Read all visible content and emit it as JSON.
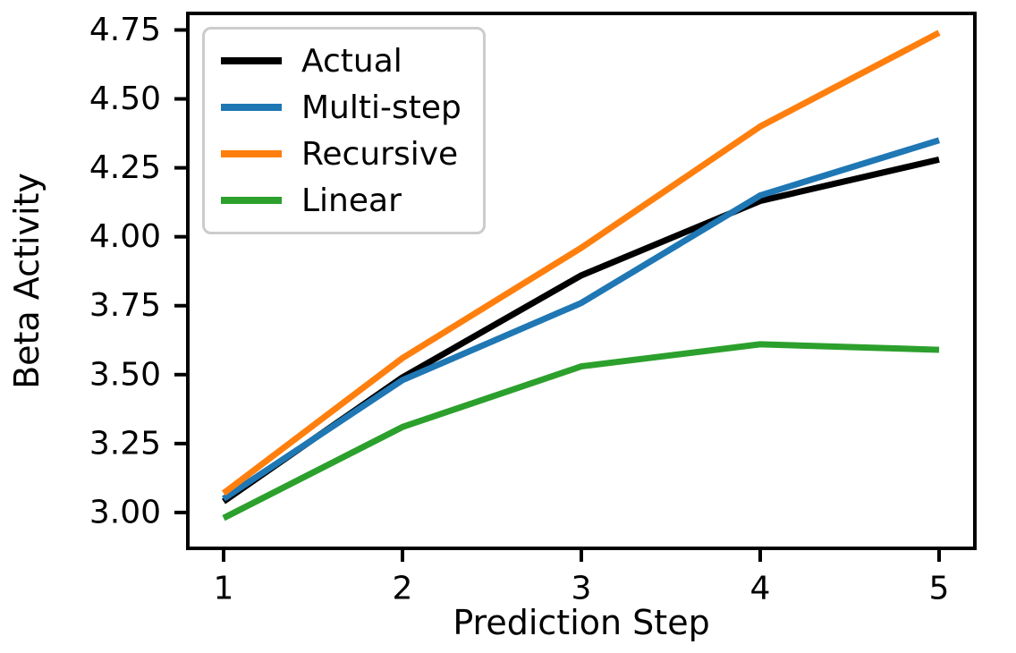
{
  "chart_data": {
    "type": "line",
    "title": "",
    "xlabel": "Prediction Step",
    "ylabel": "Beta Activity",
    "x": [
      1,
      2,
      3,
      4,
      5
    ],
    "series": [
      {
        "name": "Actual",
        "color": "#000000",
        "values": [
          3.04,
          3.49,
          3.86,
          4.13,
          4.28
        ]
      },
      {
        "name": "Multi-step",
        "color": "#1f77b4",
        "values": [
          3.05,
          3.48,
          3.76,
          4.15,
          4.35
        ]
      },
      {
        "name": "Recursive",
        "color": "#ff7f0e",
        "values": [
          3.07,
          3.56,
          3.96,
          4.4,
          4.74
        ]
      },
      {
        "name": "Linear",
        "color": "#2ca02c",
        "values": [
          2.98,
          3.31,
          3.53,
          3.61,
          3.59
        ]
      }
    ],
    "xticks": {
      "values": [
        1,
        2,
        3,
        4,
        5
      ],
      "labels": [
        "1",
        "2",
        "3",
        "4",
        "5"
      ]
    },
    "yticks": {
      "values": [
        3.0,
        3.25,
        3.5,
        3.75,
        4.0,
        4.25,
        4.5,
        4.75
      ],
      "labels": [
        "3.00",
        "3.25",
        "3.50",
        "3.75",
        "4.00",
        "4.25",
        "4.50",
        "4.75"
      ]
    },
    "xlim": [
      0.8,
      5.2
    ],
    "ylim": [
      2.87,
      4.81
    ],
    "grid": false,
    "legend": {
      "position": "upper-left",
      "entries": [
        "Actual",
        "Multi-step",
        "Recursive",
        "Linear"
      ]
    },
    "axes_color": "#000000",
    "background_color": "#ffffff"
  }
}
